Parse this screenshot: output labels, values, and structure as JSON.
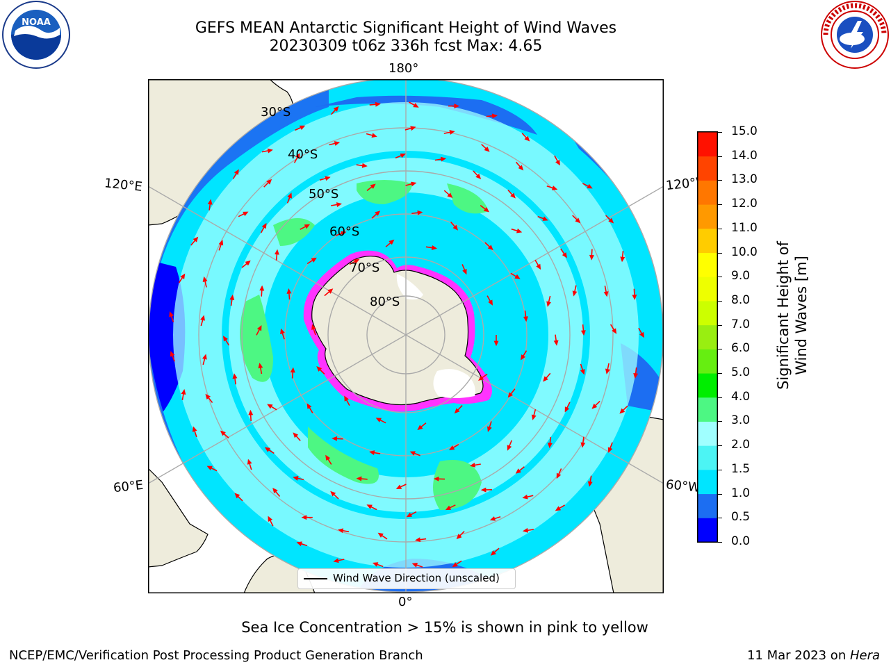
{
  "title": {
    "line1": "GEFS MEAN Antarctic Significant Height of Wind Waves",
    "line2": "20230309 t06z 336h fcst   Max: 4.65"
  },
  "map": {
    "projection": "south-polar-stereographic",
    "longitude_labels": [
      "180°",
      "120°E",
      "120°W",
      "60°E",
      "60°W",
      "0°"
    ],
    "latitude_labels": [
      "30°S",
      "40°S",
      "50°S",
      "60°S",
      "70°S",
      "80°S"
    ],
    "legend": {
      "label": "Wind Wave Direction (unscaled)"
    }
  },
  "colorbar": {
    "label": "Significant Height of Wind Waves [m]",
    "ticks": [
      "0.0",
      "0.5",
      "1.0",
      "1.5",
      "2.0",
      "3.0",
      "4.0",
      "5.0",
      "6.0",
      "7.0",
      "8.0",
      "9.0",
      "10.0",
      "11.0",
      "12.0",
      "13.0",
      "14.0",
      "15.0"
    ],
    "colors": [
      "#0000ff",
      "#1c6ef2",
      "#00e5ff",
      "#4cf4f4",
      "#a0ffff",
      "#4df783",
      "#00ee00",
      "#66ee11",
      "#99ee11",
      "#ccff00",
      "#eeff00",
      "#ffff00",
      "#ffcc00",
      "#ff9900",
      "#ff7700",
      "#ff4400",
      "#ff1100"
    ]
  },
  "sea_ice_note": "Sea Ice Concentration > 15% is shown in pink to yellow",
  "footer": {
    "left": "NCEP/EMC/Verification Post Processing Product Generation Branch",
    "right_date": "11 Mar 2023 on ",
    "right_machine": "Hera"
  },
  "logos": {
    "noaa": "NOAA",
    "nws": "NATIONAL WEATHER SERVICE"
  },
  "colors": {
    "land": "#eeecdc",
    "ocean_dark": "#1c6ef2",
    "ocean_mid": "#00e5ff",
    "ocean_light": "#a0ffff",
    "ocean_green": "#4df783",
    "ice_pink": "#ff33ff",
    "arrow_red": "#ff0000"
  }
}
